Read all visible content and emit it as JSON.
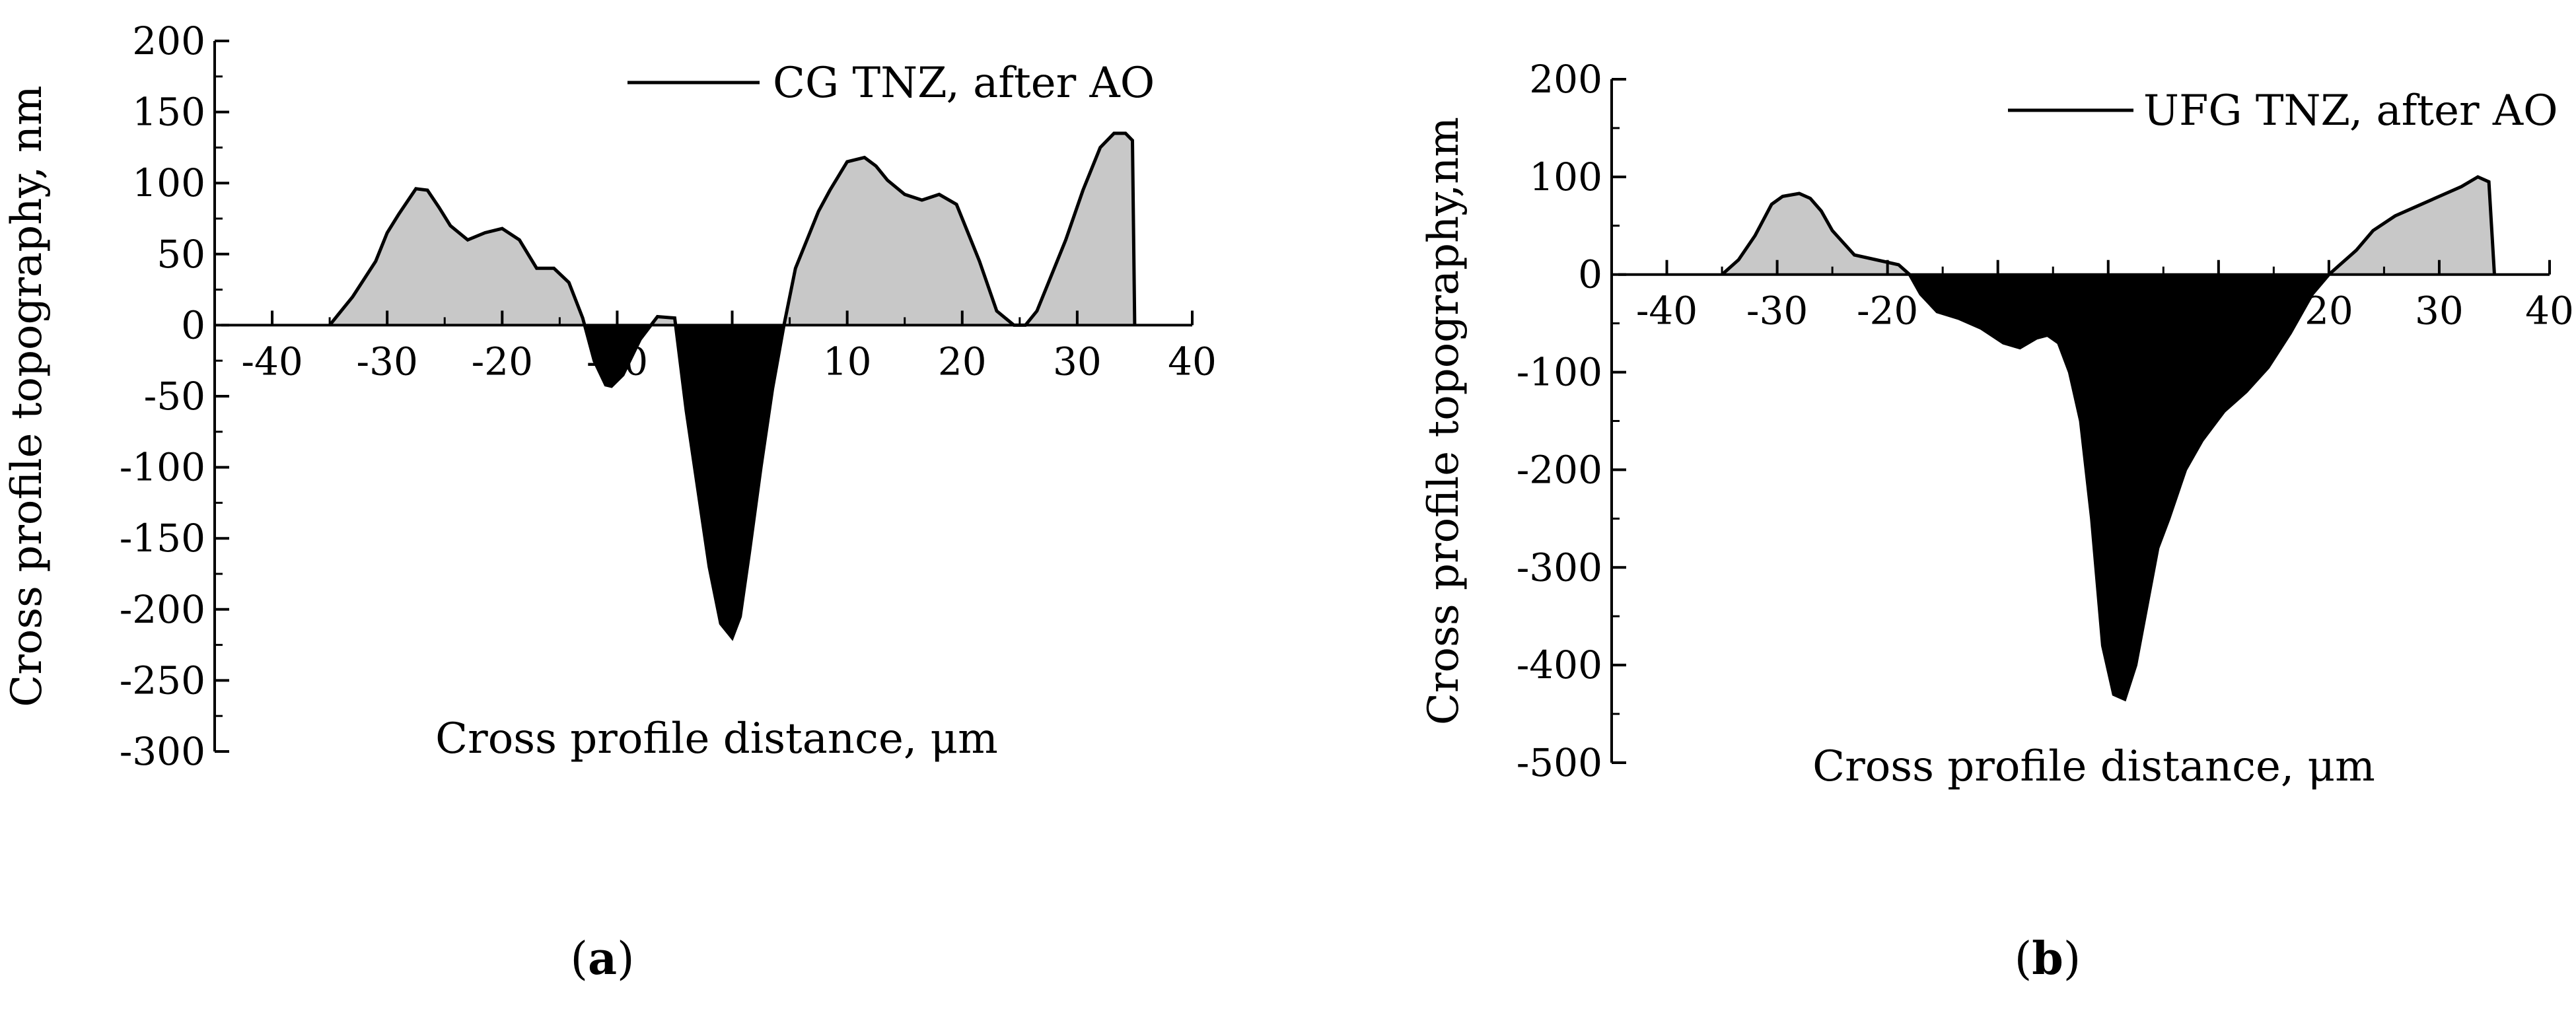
{
  "colors": {
    "positive_fill": "#c8c8c8",
    "negative_fill": "#000000",
    "line": "#000000",
    "background": "#ffffff"
  },
  "chart_data": [
    {
      "type": "area",
      "panel_label": "a",
      "legend": [
        "CG TNZ, after AO"
      ],
      "legend_position": "top-right",
      "xlabel": "Cross profile distance, μm",
      "ylabel": "Cross profile topography, nm",
      "xlim": [
        -45,
        40
      ],
      "ylim": [
        -300,
        200
      ],
      "x_ticks": [
        -40,
        -30,
        -20,
        -10,
        0,
        10,
        20,
        30,
        40
      ],
      "y_ticks": [
        200,
        150,
        100,
        50,
        0,
        -50,
        -100,
        -150,
        -200,
        -250,
        -300
      ],
      "grid": false,
      "fill": "positive values light gray, negative values black",
      "series": [
        {
          "name": "CG TNZ, after AO",
          "x": [
            -35,
            -33,
            -31,
            -30,
            -29,
            -27.5,
            -26.5,
            -25.5,
            -24.5,
            -23,
            -21.5,
            -20,
            -18.5,
            -17,
            -15.5,
            -14.2,
            -13,
            -12,
            -11,
            -10.5,
            -9.5,
            -8,
            -6.5,
            -5,
            -4,
            -3,
            -2,
            -1,
            0,
            0.7,
            1.5,
            2.5,
            3.5,
            4.5,
            5.5,
            6.5,
            7.5,
            8.5,
            10,
            11.5,
            12.5,
            13.5,
            15,
            16.5,
            18,
            19.5,
            20.5,
            21.5,
            23,
            24.5,
            25.5,
            26.5,
            27.5,
            29,
            30.5,
            32,
            33.2,
            34.2,
            34.8,
            35
          ],
          "y": [
            0,
            20,
            45,
            65,
            78,
            96,
            95,
            83,
            70,
            60,
            65,
            68,
            60,
            40,
            40,
            30,
            5,
            -25,
            -42,
            -43,
            -35,
            -10,
            6,
            5,
            -60,
            -115,
            -170,
            -210,
            -220,
            -205,
            -160,
            -100,
            -45,
            0,
            40,
            60,
            80,
            95,
            115,
            118,
            112,
            102,
            92,
            88,
            92,
            85,
            65,
            45,
            10,
            0,
            0,
            10,
            30,
            60,
            95,
            125,
            135,
            135,
            130,
            0
          ]
        }
      ]
    },
    {
      "type": "area",
      "panel_label": "b",
      "legend": [
        "UFG TNZ, after AO"
      ],
      "legend_position": "top-right",
      "xlabel": "Cross profile distance, μm",
      "ylabel": "Cross profile topography,nm",
      "xlim": [
        -45,
        40
      ],
      "ylim": [
        -500,
        200
      ],
      "x_ticks": [
        -40,
        -30,
        -20,
        -10,
        0,
        10,
        20,
        30,
        40
      ],
      "y_ticks": [
        200,
        100,
        0,
        -100,
        -200,
        -300,
        -400,
        -500
      ],
      "grid": false,
      "fill": "positive values light gray, negative values black",
      "series": [
        {
          "name": "UFG TNZ, after AO",
          "x": [
            -35,
            -33.5,
            -32,
            -30.5,
            -29.5,
            -28,
            -27,
            -26,
            -25,
            -23,
            -21,
            -19,
            -18,
            -17,
            -15.5,
            -13.5,
            -11.5,
            -9.5,
            -8,
            -6.5,
            -5.5,
            -4.5,
            -3.5,
            -2.5,
            -1.5,
            -0.5,
            0.5,
            1.5,
            2.5,
            3.5,
            4.5,
            5.5,
            7,
            8.5,
            10.5,
            12.5,
            14.5,
            16.5,
            18.5,
            20,
            21,
            22.5,
            24,
            26,
            28,
            30,
            32,
            33.5,
            34.5,
            35
          ],
          "y": [
            0,
            15,
            40,
            72,
            80,
            83,
            78,
            65,
            45,
            20,
            15,
            10,
            0,
            -20,
            -38,
            -45,
            -55,
            -70,
            -75,
            -65,
            -62,
            -70,
            -100,
            -150,
            -250,
            -380,
            -430,
            -435,
            -400,
            -340,
            -280,
            -250,
            -200,
            -170,
            -140,
            -120,
            -95,
            -60,
            -20,
            0,
            10,
            25,
            45,
            60,
            70,
            80,
            90,
            100,
            95,
            0
          ]
        }
      ]
    }
  ]
}
